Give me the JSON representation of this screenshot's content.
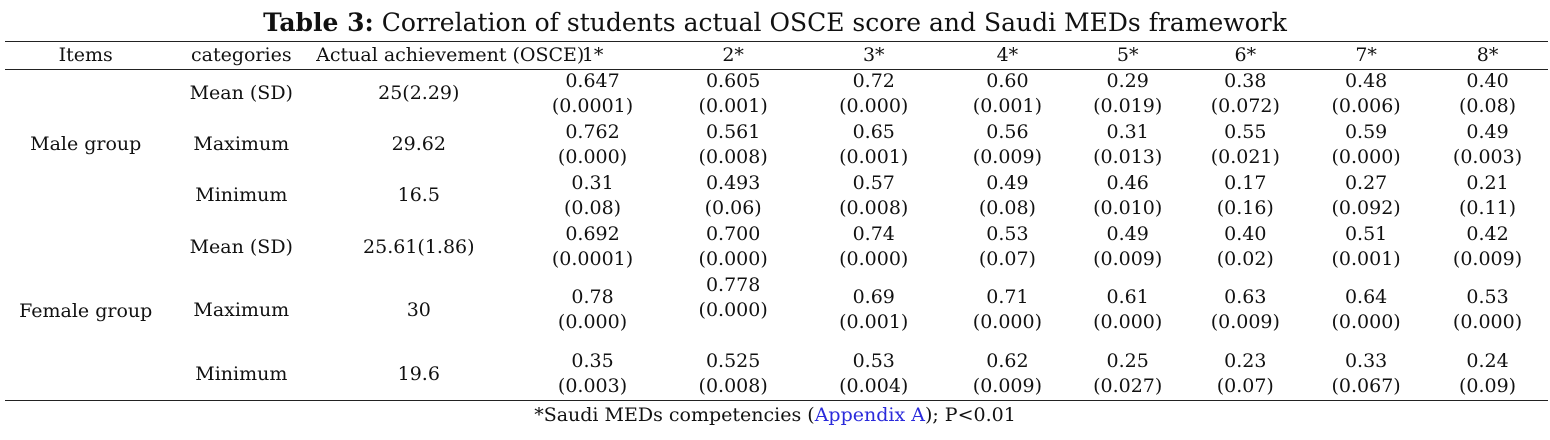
{
  "caption": {
    "label": "Table 3:",
    "text": " Correlation of students actual OSCE score and Saudi MEDs framework"
  },
  "headers": [
    "Items",
    "categories",
    "Actual achievement (OSCE)",
    "1*",
    "2*",
    "3*",
    "4*",
    "5*",
    "6*",
    "7*",
    "8*"
  ],
  "groups": [
    {
      "name": "Male group",
      "rows": [
        {
          "category": "Mean (SD)",
          "osce": "25(2.29)",
          "values": [
            [
              "0.647",
              "(0.0001)"
            ],
            [
              "0.605",
              "(0.001)"
            ],
            [
              "0.72",
              "(0.000)"
            ],
            [
              "0.60",
              "(0.001)"
            ],
            [
              "0.29",
              "(0.019)"
            ],
            [
              "0.38",
              "(0.072)"
            ],
            [
              "0.48",
              "(0.006)"
            ],
            [
              "0.40",
              "(0.08)"
            ]
          ]
        },
        {
          "category": "Maximum",
          "osce": "29.62",
          "values": [
            [
              "0.762",
              "(0.000)"
            ],
            [
              "0.561",
              "(0.008)"
            ],
            [
              "0.65",
              "(0.001)"
            ],
            [
              "0.56",
              "(0.009)"
            ],
            [
              "0.31",
              "(0.013)"
            ],
            [
              "0.55",
              "(0.021)"
            ],
            [
              "0.59",
              "(0.000)"
            ],
            [
              "0.49",
              "(0.003)"
            ]
          ]
        },
        {
          "category": "Minimum",
          "osce": "16.5",
          "values": [
            [
              "0.31",
              "(0.08)"
            ],
            [
              "0.493",
              "(0.06)"
            ],
            [
              "0.57",
              "(0.008)"
            ],
            [
              "0.49",
              "(0.08)"
            ],
            [
              "0.46",
              "(0.010)"
            ],
            [
              "0.17",
              "(0.16)"
            ],
            [
              "0.27",
              "(0.092)"
            ],
            [
              "0.21",
              "(0.11)"
            ]
          ]
        }
      ]
    },
    {
      "name": "Female group",
      "rows": [
        {
          "category": "Mean (SD)",
          "osce": "25.61(1.86)",
          "values": [
            [
              "0.692",
              "(0.0001)"
            ],
            [
              "0.700",
              "(0.000)"
            ],
            [
              "0.74",
              "(0.000)"
            ],
            [
              "0.53",
              "(0.07)"
            ],
            [
              "0.49",
              "(0.009)"
            ],
            [
              "0.40",
              "(0.02)"
            ],
            [
              "0.51",
              "(0.001)"
            ],
            [
              "0.42",
              "(0.009)"
            ]
          ]
        },
        {
          "category": "Maximum",
          "osce": "30",
          "values": [
            [
              "0.78",
              "(0.000)"
            ],
            [
              "0.778",
              "(0.000)"
            ],
            [
              "0.69",
              "(0.001)"
            ],
            [
              "0.71",
              "(0.000)"
            ],
            [
              "0.61",
              "(0.000)"
            ],
            [
              "0.63",
              "(0.009)"
            ],
            [
              "0.64",
              "(0.000)"
            ],
            [
              "0.53",
              "(0.000)"
            ]
          ]
        },
        {
          "category": "Minimum",
          "osce": "19.6",
          "values": [
            [
              "0.35",
              "(0.003)"
            ],
            [
              "0.525",
              "(0.008)"
            ],
            [
              "0.53",
              "(0.004)"
            ],
            [
              "0.62",
              "(0.009)"
            ],
            [
              "0.25",
              "(0.027)"
            ],
            [
              "0.23",
              "(0.07)"
            ],
            [
              "0.33",
              "(0.067)"
            ],
            [
              "0.24",
              "(0.09)"
            ]
          ]
        }
      ]
    }
  ],
  "footnote": {
    "prefix": "*Saudi MEDs competencies (",
    "link": "Appendix A",
    "suffix": "); P<0.01"
  }
}
